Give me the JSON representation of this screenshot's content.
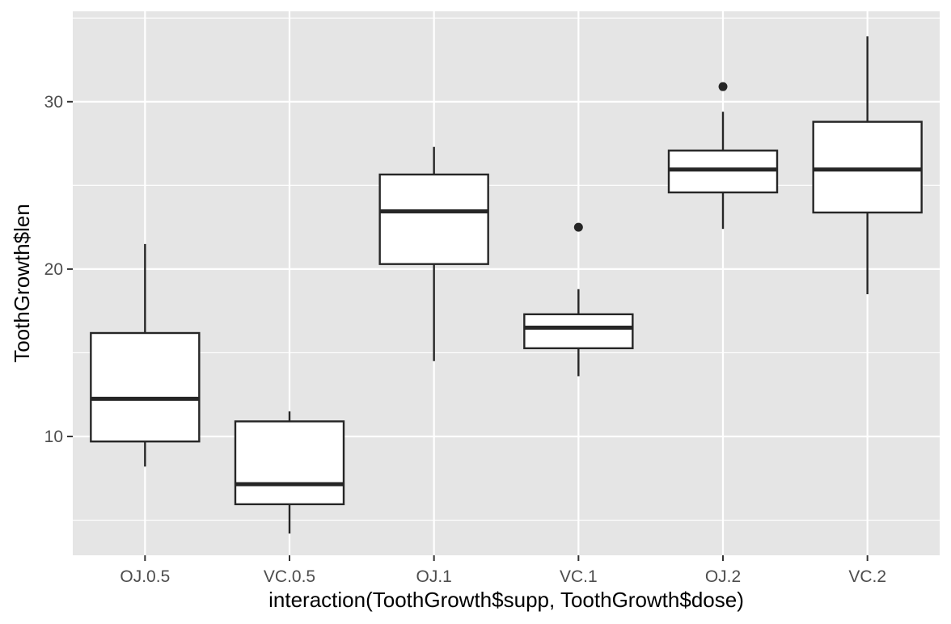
{
  "chart_data": {
    "type": "boxplot",
    "title": "",
    "xlabel": "interaction(ToothGrowth$supp, ToothGrowth$dose)",
    "ylabel": "ToothGrowth$len",
    "ylim": [
      2.9,
      35.4
    ],
    "y_ticks": [
      10,
      20,
      30
    ],
    "y_minor_ticks": [
      5,
      15,
      25,
      35
    ],
    "grid": true,
    "legend": "none",
    "categories": [
      "OJ.0.5",
      "VC.0.5",
      "OJ.1",
      "VC.1",
      "OJ.2",
      "VC.2"
    ],
    "boxes": [
      {
        "category": "OJ.0.5",
        "lower_whisker": 8.2,
        "q1": 9.7,
        "median": 12.25,
        "q3": 16.18,
        "upper_whisker": 21.5,
        "outliers": []
      },
      {
        "category": "VC.0.5",
        "lower_whisker": 4.2,
        "q1": 5.95,
        "median": 7.15,
        "q3": 10.9,
        "upper_whisker": 11.5,
        "outliers": []
      },
      {
        "category": "OJ.1",
        "lower_whisker": 14.5,
        "q1": 20.3,
        "median": 23.45,
        "q3": 25.65,
        "upper_whisker": 27.3,
        "outliers": []
      },
      {
        "category": "VC.1",
        "lower_whisker": 13.6,
        "q1": 15.27,
        "median": 16.5,
        "q3": 17.3,
        "upper_whisker": 18.8,
        "outliers": [
          22.5
        ]
      },
      {
        "category": "OJ.2",
        "lower_whisker": 22.4,
        "q1": 24.58,
        "median": 25.95,
        "q3": 27.08,
        "upper_whisker": 29.4,
        "outliers": [
          30.9
        ]
      },
      {
        "category": "VC.2",
        "lower_whisker": 18.5,
        "q1": 23.38,
        "median": 25.95,
        "q3": 28.8,
        "upper_whisker": 33.9,
        "outliers": []
      }
    ],
    "colors": {
      "panel_background": "#e5e5e5",
      "grid": "#ffffff",
      "box_fill": "#ffffff",
      "box_stroke": "#262626",
      "tick_text": "#4d4d4d",
      "title_text": "#000000"
    }
  }
}
